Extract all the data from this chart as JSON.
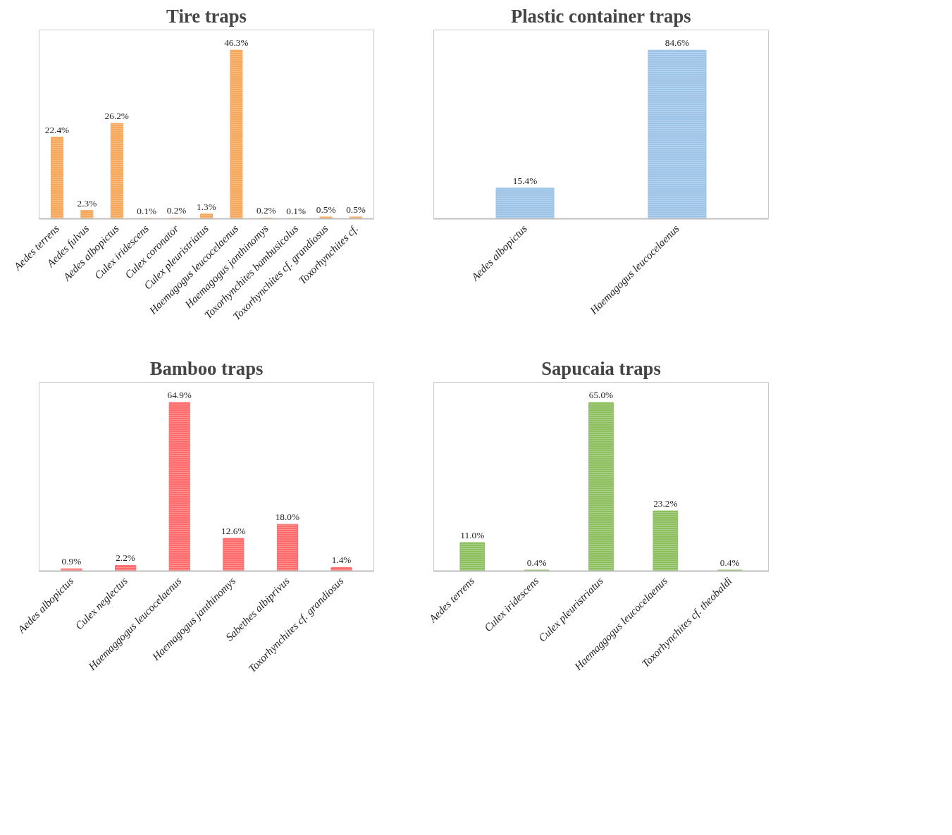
{
  "chart_data": [
    {
      "type": "bar",
      "title": "Tire traps",
      "color": "#f7a75a",
      "categories": [
        "Aedes terrens",
        "Aedes fulvus",
        "Aedes albopictus",
        "Culex iridescens",
        "Culex coronator",
        "Culex pleuristriatus",
        "Haemagogus leucocelaenus",
        "Haemagogus janthinomys",
        "Toxorhynchites bambusicolus",
        "Toxorhynchites cf. grandiosus",
        "Toxorhynchites cf."
      ],
      "values": [
        22.4,
        2.3,
        26.2,
        0.1,
        0.2,
        1.3,
        46.3,
        0.2,
        0.1,
        0.5,
        0.5
      ],
      "value_labels": [
        "22.4%",
        "2.3%",
        "26.2%",
        "0.1%",
        "0.2%",
        "1.3%",
        "46.3%",
        "0.2%",
        "0.1%",
        "0.5%",
        "0.5%"
      ]
    },
    {
      "type": "bar",
      "title": "Plastic container traps",
      "color": "#9dc3e6",
      "categories": [
        "Aedes albopictus",
        "Haemagogus leucocelaenus"
      ],
      "values": [
        15.4,
        84.6
      ],
      "value_labels": [
        "15.4%",
        "84.6%"
      ]
    },
    {
      "type": "bar",
      "title": "Bamboo traps",
      "color": "#ff6b6b",
      "categories": [
        "Aedes albopictus",
        "Culex neglectus",
        "Haemaggogus leucocelaenus",
        "Haemagogus janthinomys",
        "Sabethes albiprivus",
        "Toxorhynchites cf. grandiosus"
      ],
      "values": [
        0.9,
        2.2,
        64.9,
        12.6,
        18.0,
        1.4
      ],
      "value_labels": [
        "0.9%",
        "2.2%",
        "64.9%",
        "12.6%",
        "18.0%",
        "1.4%"
      ]
    },
    {
      "type": "bar",
      "title": "Sapucaia traps",
      "color": "#8dbf5e",
      "categories": [
        "Aedes terrens",
        "Culex iridescens",
        "Culex pleuristriatus",
        "Haemaggogus leucocelaenus",
        "Toxorhynchites cf. theobaldi"
      ],
      "values": [
        11.0,
        0.4,
        65.0,
        23.2,
        0.4
      ],
      "value_labels": [
        "11.0%",
        "0.4%",
        "65.0%",
        "23.2%",
        "0.4%"
      ]
    }
  ]
}
